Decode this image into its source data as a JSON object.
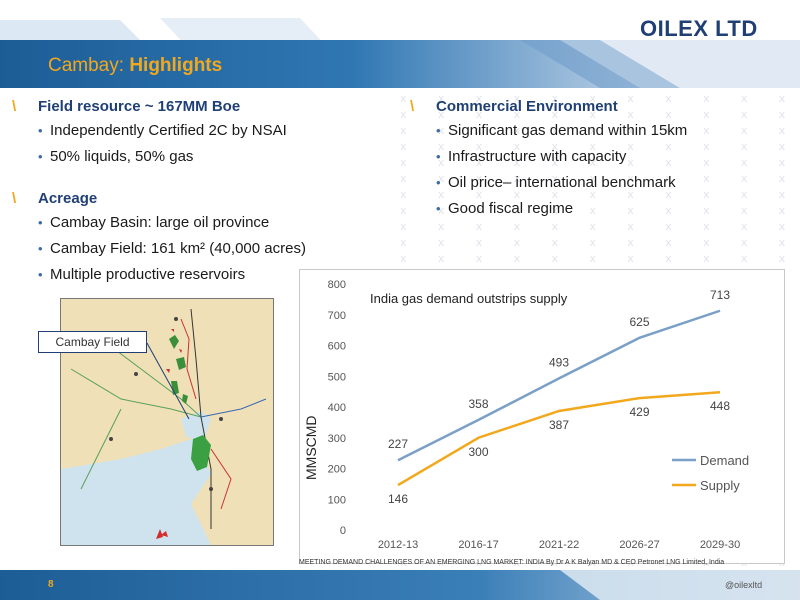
{
  "header": {
    "title_prefix": "Cambay:",
    "title_main": "Highlights",
    "logo": "OILEX LTD"
  },
  "left": {
    "sections": [
      {
        "heading": "Field resource ~ 167MM Boe",
        "bullets": [
          "Independently Certified 2C by NSAI",
          "50% liquids, 50% gas"
        ]
      },
      {
        "heading": "Acreage",
        "bullets": [
          "Cambay Basin: large oil province",
          "Cambay Field:  161 km² (40,000 acres)",
          "Multiple productive reservoirs"
        ]
      }
    ]
  },
  "right": {
    "sections": [
      {
        "heading": "Commercial Environment",
        "bullets": [
          "Significant gas demand within 15km",
          "Infrastructure with capacity",
          "Oil price– international benchmark",
          "Good fiscal regime"
        ]
      }
    ]
  },
  "map": {
    "callout": "Cambay Field"
  },
  "chart_data": {
    "type": "line",
    "title": "India gas demand outstrips supply",
    "xlabel": "",
    "ylabel": "MMSCMD",
    "categories": [
      "2012-13",
      "2016-17",
      "2021-22",
      "2026-27",
      "2029-30"
    ],
    "ylim": [
      0,
      800
    ],
    "yticks": [
      0,
      100,
      200,
      300,
      400,
      500,
      600,
      700,
      800
    ],
    "grid": false,
    "legend": "right",
    "series": [
      {
        "name": "Demand",
        "values": [
          227,
          358,
          493,
          625,
          713
        ],
        "color": "#7aa0c8"
      },
      {
        "name": "Supply",
        "values": [
          146,
          300,
          387,
          429,
          448
        ],
        "color": "#f2a81d"
      }
    ]
  },
  "source_note": "MEETING DEMAND CHALLENGES OF AN EMERGING LNG MARKET: INDIA By Dr A K Balyan MD & CEO Petronet LNG Limited, India",
  "footer": {
    "page_number": "8",
    "website": "@oilexltd"
  },
  "colors": {
    "accent": "#f2a81d",
    "brand": "#1f3f75",
    "band": "#2a6fa8"
  }
}
